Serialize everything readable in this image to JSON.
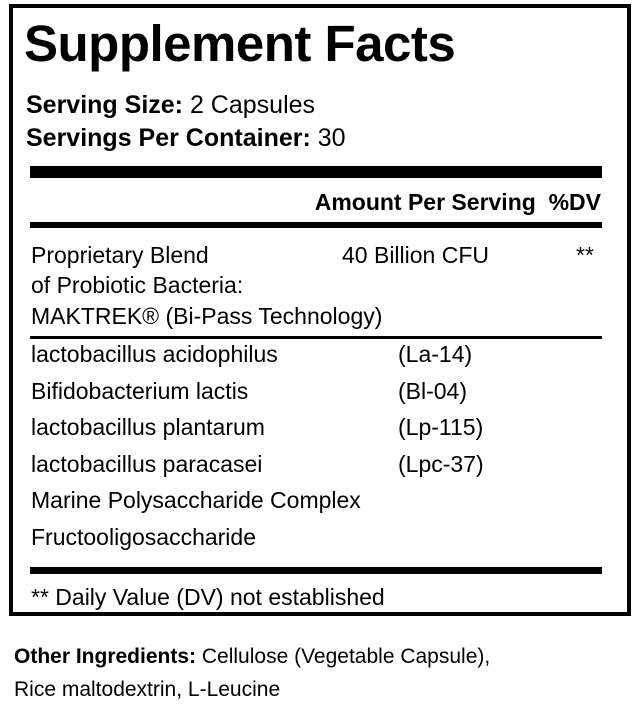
{
  "title": "Supplement Facts",
  "serving_size_label": "Serving Size:",
  "serving_size_value": "2 Capsules",
  "servings_per_container_label": "Servings Per Container:",
  "servings_per_container_value": "30",
  "header": {
    "amount": "Amount Per Serving",
    "dv": "%DV"
  },
  "blend": {
    "line1": "Proprietary Blend",
    "line2": "of Probiotic Bacteria:",
    "line3": "MAKTREK® (Bi-Pass Technology)",
    "amount": "40 Billion CFU",
    "dv": "**"
  },
  "ingredients": [
    {
      "name": "lactobacillus acidophilus",
      "strain": "(La-14)"
    },
    {
      "name": "Bifidobacterium lactis",
      "strain": "(Bl-04)"
    },
    {
      "name": "lactobacillus plantarum",
      "strain": "(Lp-115)"
    },
    {
      "name": "lactobacillus paracasei",
      "strain": "(Lpc-37)"
    },
    {
      "name": "Marine Polysaccharide Complex",
      "strain": ""
    },
    {
      "name": "Fructooligosaccharide",
      "strain": ""
    }
  ],
  "footnote": "** Daily Value (DV) not established",
  "other_ingredients": {
    "label": "Other Ingredients:",
    "line1": "Cellulose (Vegetable Capsule),",
    "line2": "Rice maltodextrin, L-Leucine"
  }
}
